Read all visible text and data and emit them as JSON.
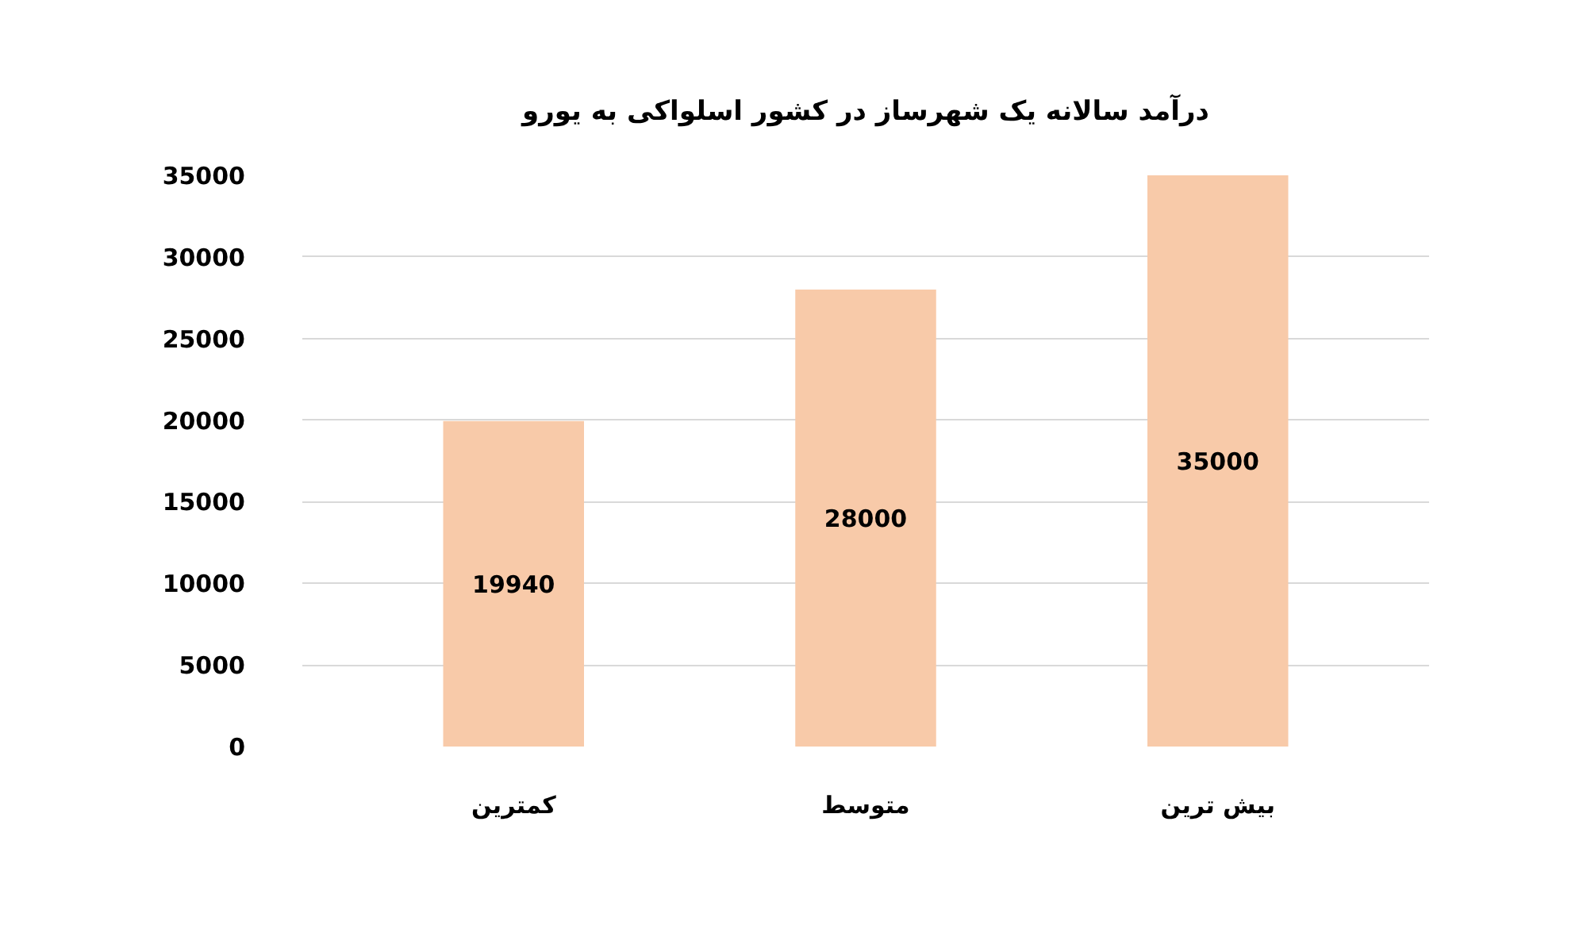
{
  "chart_data": {
    "type": "bar",
    "title": "درآمد سالانه یک شهرساز در کشور اسلواکی به یورو",
    "categories": [
      "کمترین",
      "متوسط",
      "بیش ترین"
    ],
    "values": [
      19940,
      28000,
      35000
    ],
    "color": "#f8caa9",
    "ylim": [
      0,
      35000
    ],
    "yticks": [
      0,
      5000,
      10000,
      15000,
      20000,
      25000,
      30000,
      35000
    ],
    "grid": "y",
    "data_labels": true
  }
}
